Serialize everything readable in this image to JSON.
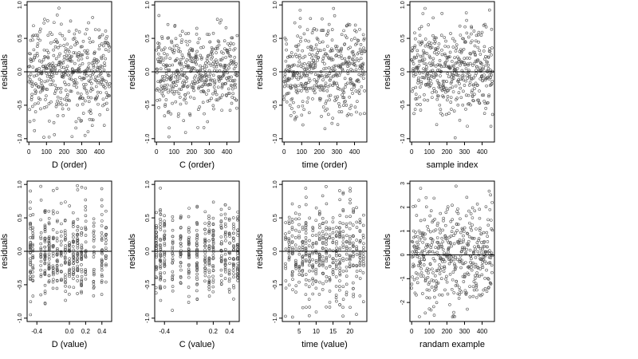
{
  "colors": {
    "axis": "#000000",
    "point": "#555555",
    "zero_line": "#000000"
  },
  "chart_data": [
    {
      "type": "scatter",
      "title": "",
      "xlabel": "D (order)",
      "ylabel": "residuals",
      "xlim": [
        -10,
        470
      ],
      "ylim": [
        -1.05,
        1.05
      ],
      "xticks": [
        0,
        100,
        200,
        300,
        400
      ],
      "xtick_labels": [
        "0",
        "100",
        "200",
        "300",
        "400"
      ],
      "yticks": [
        -1,
        -0.5,
        0,
        0.5,
        1
      ],
      "ytick_labels": [
        "-1.0",
        "-0.5",
        "0.0",
        "0.5",
        "1.0"
      ],
      "hline": 0,
      "n_points": 460,
      "x_mode": "index",
      "spread": 0.35
    },
    {
      "type": "scatter",
      "title": "",
      "xlabel": "C (order)",
      "ylabel": "residuals",
      "xlim": [
        -10,
        470
      ],
      "ylim": [
        -1.05,
        1.05
      ],
      "xticks": [
        0,
        100,
        200,
        300,
        400
      ],
      "xtick_labels": [
        "0",
        "100",
        "200",
        "300",
        "400"
      ],
      "yticks": [
        -1,
        -0.5,
        0,
        0.5,
        1
      ],
      "ytick_labels": [
        "-1.0",
        "-0.5",
        "0.0",
        "0.5",
        "1.0"
      ],
      "hline": 0,
      "n_points": 460,
      "x_mode": "index",
      "spread": 0.33
    },
    {
      "type": "scatter",
      "title": "",
      "xlabel": "time (order)",
      "ylabel": "residuals",
      "xlim": [
        -10,
        470
      ],
      "ylim": [
        -1.05,
        1.05
      ],
      "xticks": [
        0,
        100,
        200,
        300,
        400
      ],
      "xtick_labels": [
        "0",
        "100",
        "200",
        "300",
        "400"
      ],
      "yticks": [
        -1,
        -0.5,
        0,
        0.5,
        1
      ],
      "ytick_labels": [
        "-1.0",
        "-0.5",
        "0.0",
        "0.5",
        "1.0"
      ],
      "hline": 0,
      "n_points": 460,
      "x_mode": "index",
      "spread": 0.36
    },
    {
      "type": "scatter",
      "title": "",
      "xlabel": "sample index",
      "ylabel": "residuals",
      "xlim": [
        -10,
        470
      ],
      "ylim": [
        -1.05,
        1.05
      ],
      "xticks": [
        0,
        100,
        200,
        300,
        400
      ],
      "xtick_labels": [
        "0",
        "100",
        "200",
        "300",
        "400"
      ],
      "yticks": [
        -1,
        -0.5,
        0,
        0.5,
        1
      ],
      "ytick_labels": [
        "-1.0",
        "-0.5",
        "0.0",
        "0.5",
        "1.0"
      ],
      "hline": 0,
      "n_points": 460,
      "x_mode": "index",
      "spread": 0.34
    },
    {
      "type": "scatter",
      "title": "",
      "xlabel": "D (value)",
      "ylabel": "residuals",
      "xlim": [
        -0.52,
        0.52
      ],
      "ylim": [
        -1.05,
        1.05
      ],
      "xticks": [
        -0.4,
        0,
        0.2,
        0.4
      ],
      "xtick_labels": [
        "-0.4",
        "0.0",
        "0.2",
        "0.4"
      ],
      "yticks": [
        -1,
        -0.5,
        0,
        0.5,
        1
      ],
      "ytick_labels": [
        "-1.0",
        "-0.5",
        "0.0",
        "0.5",
        "1.0"
      ],
      "hline": 0,
      "n_points": 460,
      "x_mode": "levels",
      "x_levels": [
        -0.48,
        -0.45,
        -0.35,
        -0.3,
        -0.25,
        -0.2,
        -0.15,
        -0.1,
        -0.05,
        0.0,
        0.05,
        0.1,
        0.15,
        0.2,
        0.3,
        0.4,
        0.45
      ],
      "spread": 0.35
    },
    {
      "type": "scatter",
      "title": "",
      "xlabel": "C (value)",
      "ylabel": "residuals",
      "xlim": [
        -0.52,
        0.52
      ],
      "ylim": [
        -1.05,
        1.05
      ],
      "xticks": [
        -0.4,
        0,
        0.2,
        0.4
      ],
      "xtick_labels": [
        "-0.4",
        "",
        "0.2",
        "0.4"
      ],
      "yticks": [
        -1,
        -0.5,
        0,
        0.5,
        1
      ],
      "ytick_labels": [
        "-1.0",
        "-0.5",
        "0.0",
        "0.5",
        "1.0"
      ],
      "hline": 0,
      "n_points": 460,
      "x_mode": "levels",
      "x_levels": [
        -0.5,
        -0.45,
        -0.4,
        -0.3,
        -0.2,
        -0.1,
        0.0,
        0.1,
        0.15,
        0.2,
        0.3,
        0.35,
        0.4,
        0.45,
        0.5
      ],
      "spread": 0.33
    },
    {
      "type": "scatter",
      "title": "",
      "xlabel": "time (value)",
      "ylabel": "residuals",
      "xlim": [
        0,
        25
      ],
      "ylim": [
        -1.05,
        1.05
      ],
      "xticks": [
        5,
        10,
        15,
        20
      ],
      "xtick_labels": [
        "5",
        "10",
        "15",
        "20"
      ],
      "yticks": [
        -1,
        -0.5,
        0,
        0.5,
        1
      ],
      "ytick_labels": [
        "-1.0",
        "-0.5",
        "0.0",
        "0.5",
        "1.0"
      ],
      "hline": 0,
      "n_points": 460,
      "x_mode": "levels",
      "x_levels": [
        1,
        2,
        3,
        4,
        5,
        6,
        7,
        8,
        9,
        10,
        11,
        12,
        13,
        14,
        15,
        16,
        17,
        18,
        19,
        20,
        21,
        22,
        23,
        24
      ],
      "spread": 0.36
    },
    {
      "type": "scatter",
      "title": "",
      "xlabel": "randam example",
      "ylabel": "residuals",
      "xlim": [
        -10,
        470
      ],
      "ylim": [
        -2.8,
        3.1
      ],
      "xticks": [
        0,
        100,
        200,
        300,
        400
      ],
      "xtick_labels": [
        "0",
        "100",
        "200",
        "300",
        "400"
      ],
      "yticks": [
        -2,
        -1,
        0,
        1,
        2,
        3
      ],
      "ytick_labels": [
        "-2",
        "-1",
        "0",
        "1",
        "2",
        "3"
      ],
      "hline": 0,
      "n_points": 460,
      "x_mode": "index",
      "spread": 1.0
    }
  ]
}
